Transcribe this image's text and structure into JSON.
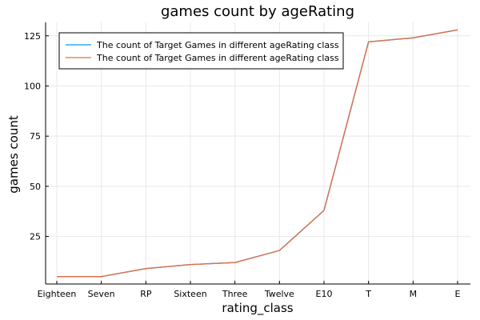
{
  "chart_data": {
    "type": "line",
    "title": "games count by ageRating",
    "xlabel": "rating_class",
    "ylabel": "games count",
    "categories": [
      "Eighteen",
      "Seven",
      "RP",
      "Sixteen",
      "Three",
      "Twelve",
      "E10",
      "T",
      "M",
      "E"
    ],
    "series": [
      {
        "name": "The count of Target Games in different ageRating class",
        "color": "#009af9",
        "values": [
          5,
          5,
          9,
          11,
          12,
          18,
          38,
          122,
          124,
          128
        ]
      },
      {
        "name": "The count of Target Games in different ageRating class",
        "color": "#e26f46",
        "values": [
          5,
          5,
          9,
          11,
          12,
          18,
          38,
          122,
          124,
          128
        ]
      }
    ],
    "ylim": [
      1.3,
      131.7
    ],
    "yticks": [
      25,
      50,
      75,
      100,
      125
    ],
    "grid": true,
    "legend_position": "top-left"
  }
}
